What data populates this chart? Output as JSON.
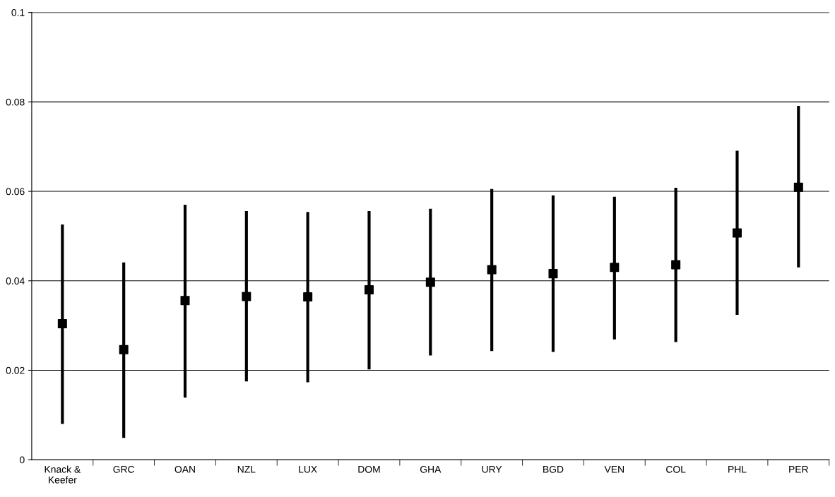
{
  "chart_data": {
    "type": "scatter",
    "categories": [
      "Knack &\nKeefer",
      "GRC",
      "OAN",
      "NZL",
      "LUX",
      "DOM",
      "GHA",
      "URY",
      "BGD",
      "VEN",
      "COL",
      "PHL",
      "PER"
    ],
    "series": [
      {
        "color": "#000000",
        "values": [
          0.0304,
          0.0246,
          0.0356,
          0.0365,
          0.0364,
          0.038,
          0.0397,
          0.0425,
          0.0416,
          0.043,
          0.0436,
          0.0507,
          0.0609
        ],
        "errors": [
          [
            0.008,
            0.0526
          ],
          [
            0.0049,
            0.0441
          ],
          [
            0.0139,
            0.057
          ],
          [
            0.0175,
            0.0556
          ],
          [
            0.0173,
            0.0554
          ],
          [
            0.0202,
            0.0556
          ],
          [
            0.0233,
            0.0561
          ],
          [
            0.0243,
            0.0605
          ],
          [
            0.0241,
            0.0591
          ],
          [
            0.0269,
            0.0588
          ],
          [
            0.0263,
            0.0608
          ],
          [
            0.0324,
            0.0691
          ],
          [
            0.043,
            0.0791
          ]
        ]
      }
    ],
    "ylim": [
      0,
      0.1
    ],
    "yticks": [
      0,
      0.02,
      0.04,
      0.06,
      0.08,
      0.1
    ],
    "grid": "y",
    "marker": "square"
  }
}
